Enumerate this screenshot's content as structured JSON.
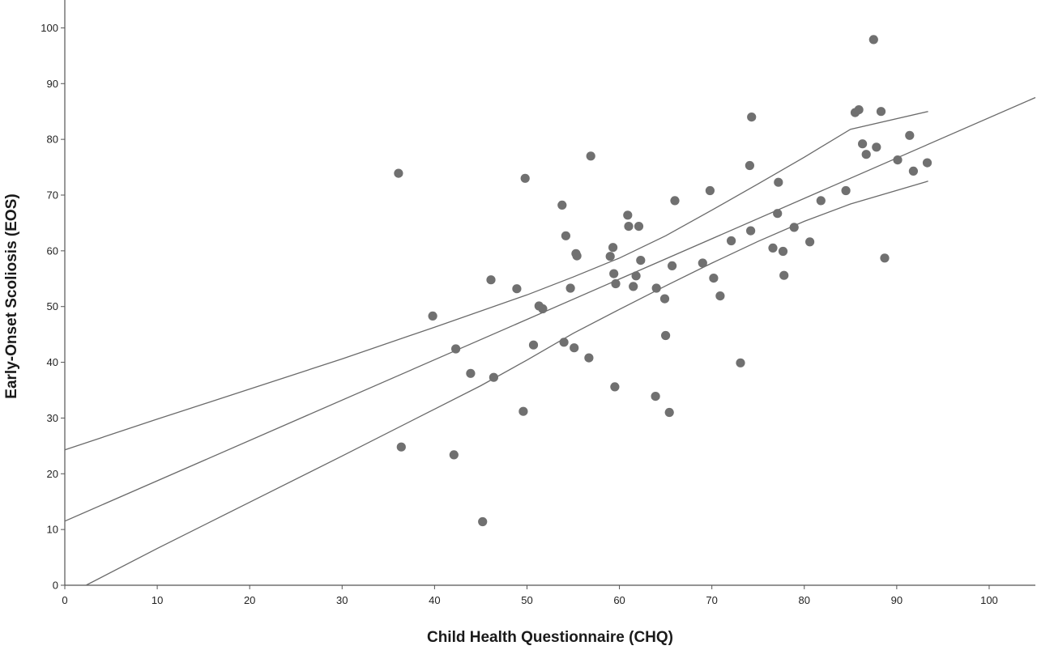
{
  "chart_data": {
    "type": "scatter",
    "xlabel": "Child Health Questionnaire (CHQ)",
    "ylabel": "Early-Onset Scoliosis (EOS)",
    "xlim": [
      0,
      105
    ],
    "ylim": [
      0,
      105
    ],
    "x_ticks": [
      "0",
      "10",
      "20",
      "30",
      "40",
      "50",
      "60",
      "70",
      "80",
      "90",
      "100"
    ],
    "y_ticks": [
      "0",
      "10",
      "20",
      "30",
      "40",
      "50",
      "60",
      "70",
      "80",
      "90",
      "100"
    ],
    "grid": false,
    "colors": {
      "points": "#707070",
      "lines": "#6a6a6a",
      "axis": "#555555"
    },
    "series": [
      {
        "kind": "points",
        "x": [
          36.1,
          36.4,
          39.8,
          42.1,
          42.3,
          43.9,
          45.2,
          46.1,
          46.4,
          48.9,
          49.6,
          49.8,
          50.7,
          51.3,
          51.7,
          53.8,
          54.0,
          54.2,
          54.7,
          55.1,
          55.3,
          55.4,
          56.7,
          56.9,
          59.0,
          59.3,
          59.4,
          59.5,
          59.6,
          60.9,
          61.0,
          61.5,
          61.8,
          62.1,
          62.3,
          63.9,
          64.0,
          64.9,
          65.0,
          65.4,
          65.7,
          66.0,
          69.0,
          69.8,
          70.2,
          70.9,
          72.1,
          73.1,
          74.1,
          74.2,
          74.3,
          76.6,
          77.1,
          77.2,
          77.7,
          77.8,
          78.9,
          80.6,
          81.8,
          84.5,
          85.5,
          85.9,
          86.3,
          86.7,
          87.5,
          87.8,
          88.3,
          88.7,
          90.1,
          91.4,
          91.8,
          93.3
        ],
        "y": [
          73.9,
          24.8,
          48.3,
          23.4,
          42.4,
          38.0,
          11.4,
          54.8,
          37.3,
          53.2,
          31.2,
          73.0,
          43.1,
          50.1,
          49.6,
          68.2,
          43.6,
          62.7,
          53.3,
          42.6,
          59.5,
          59.1,
          40.8,
          77.0,
          59.0,
          60.6,
          55.9,
          35.6,
          54.1,
          66.4,
          64.4,
          53.6,
          55.5,
          64.4,
          58.3,
          33.9,
          53.3,
          51.4,
          44.8,
          31.0,
          57.3,
          69.0,
          57.8,
          70.8,
          55.1,
          51.9,
          61.8,
          39.9,
          75.3,
          63.6,
          84.0,
          60.5,
          66.7,
          72.3,
          59.9,
          55.6,
          64.2,
          61.6,
          69.0,
          70.8,
          84.8,
          85.3,
          79.2,
          77.3,
          97.9,
          78.6,
          85.0,
          58.7,
          76.3,
          80.7,
          74.3,
          75.8
        ]
      },
      {
        "kind": "fit-line",
        "x": [
          0,
          105
        ],
        "y": [
          11.5,
          87.5
        ]
      },
      {
        "kind": "ci-upper",
        "x": [
          0,
          10,
          20,
          30,
          40,
          50,
          55,
          60,
          65,
          70,
          75,
          80,
          85,
          93.4
        ],
        "y": [
          24.3,
          29.8,
          35.2,
          40.6,
          46.3,
          52.1,
          55.3,
          58.7,
          62.7,
          67.3,
          72.0,
          76.8,
          81.8,
          85.0
        ]
      },
      {
        "kind": "ci-lower",
        "x": [
          2.3,
          10,
          20,
          30,
          40,
          45,
          50,
          55,
          60,
          65,
          70,
          75,
          80,
          85,
          93.4
        ],
        "y": [
          0.0,
          6.6,
          14.9,
          23.2,
          31.6,
          35.8,
          40.4,
          45.2,
          49.5,
          53.7,
          57.8,
          61.7,
          65.3,
          68.4,
          72.5
        ]
      }
    ]
  }
}
